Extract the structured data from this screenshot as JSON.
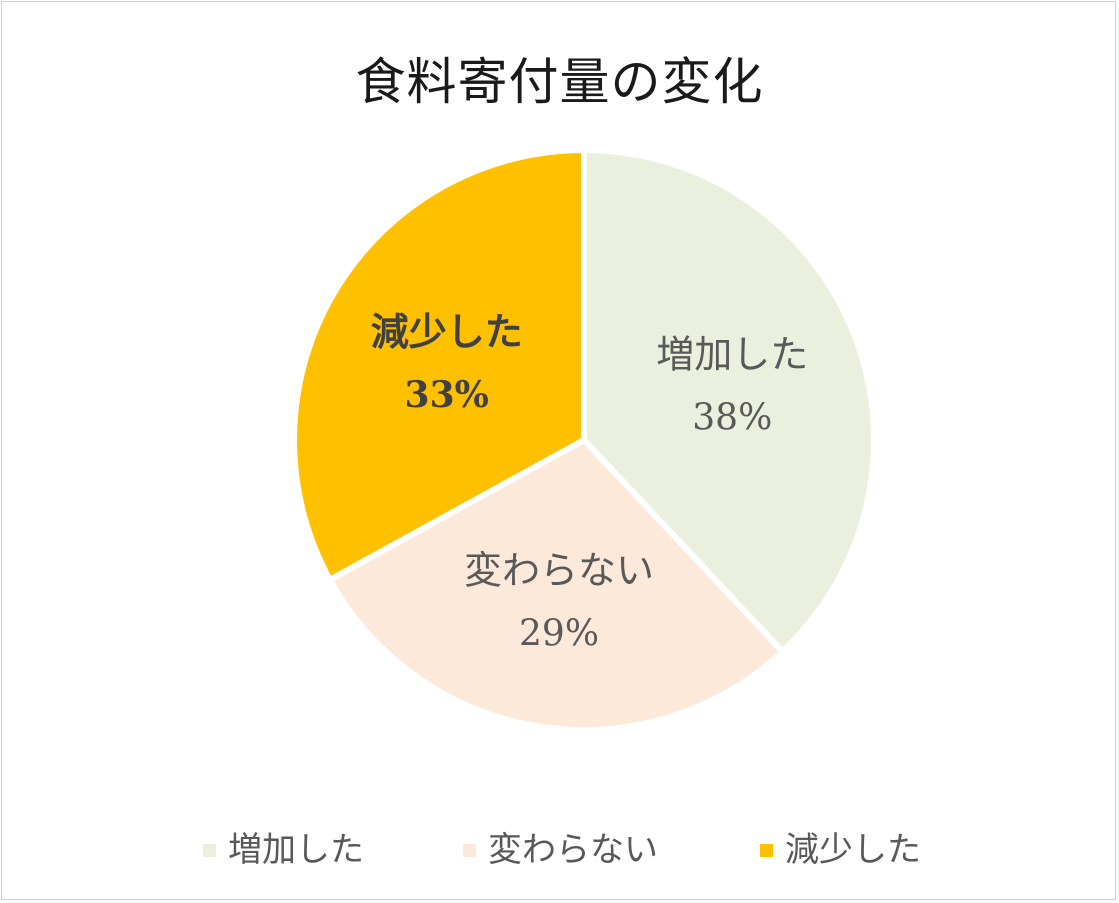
{
  "chart_data": {
    "type": "pie",
    "title": "食料寄付量の変化",
    "categories": [
      "増加した",
      "変わらない",
      "減少した"
    ],
    "values": [
      38,
      29,
      33
    ],
    "labels": [
      "38%",
      "29%",
      "33%"
    ],
    "colors": [
      "#EBF0DE",
      "#FDE9DA",
      "#FFC000"
    ],
    "label_colors": [
      "#595959",
      "#595959",
      "#404040"
    ],
    "start_angle_deg": 0,
    "direction": "clockwise",
    "legend_position": "bottom"
  }
}
